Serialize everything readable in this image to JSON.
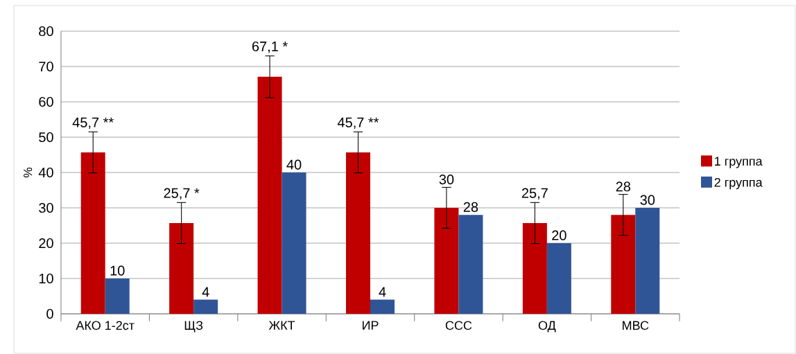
{
  "chart_data": {
    "type": "bar",
    "ylabel": "%",
    "categories": [
      "АКО 1-2ст",
      "ЩЗ",
      "ЖКТ",
      "ИР",
      "ССС",
      "ОД",
      "МВС"
    ],
    "series": [
      {
        "name": "1 группа",
        "color": "#c00000",
        "values": [
          45.7,
          25.7,
          67.1,
          45.7,
          30,
          25.7,
          28
        ],
        "errors": [
          5.8,
          5.8,
          5.9,
          5.8,
          5.8,
          5.8,
          5.8
        ],
        "value_labels": [
          "45,7 **",
          "25,7 *",
          "67,1 *",
          "45,7 **",
          "30",
          "25,7",
          "28"
        ]
      },
      {
        "name": "2 группа",
        "color": "#2f5597",
        "values": [
          10,
          4,
          40,
          4,
          28,
          20,
          30
        ],
        "value_labels": [
          "10",
          "4",
          "40",
          "4",
          "28",
          "20",
          "30"
        ]
      }
    ],
    "ylim": [
      0,
      80
    ],
    "yticks": [
      0,
      10,
      20,
      30,
      40,
      50,
      60,
      70,
      80
    ],
    "grid": "y",
    "legend": "right"
  }
}
